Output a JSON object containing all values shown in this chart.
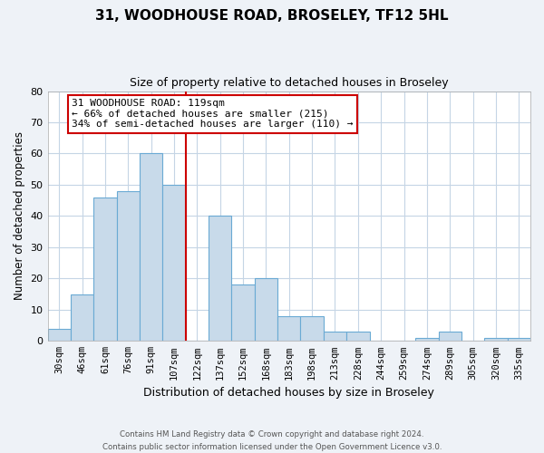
{
  "title": "31, WOODHOUSE ROAD, BROSELEY, TF12 5HL",
  "subtitle": "Size of property relative to detached houses in Broseley",
  "xlabel": "Distribution of detached houses by size in Broseley",
  "ylabel": "Number of detached properties",
  "bar_labels": [
    "30sqm",
    "46sqm",
    "61sqm",
    "76sqm",
    "91sqm",
    "107sqm",
    "122sqm",
    "137sqm",
    "152sqm",
    "168sqm",
    "183sqm",
    "198sqm",
    "213sqm",
    "228sqm",
    "244sqm",
    "259sqm",
    "274sqm",
    "289sqm",
    "305sqm",
    "320sqm",
    "335sqm"
  ],
  "bar_values": [
    4,
    15,
    46,
    48,
    60,
    50,
    0,
    40,
    18,
    20,
    8,
    8,
    3,
    3,
    0,
    0,
    1,
    3,
    0,
    1,
    1
  ],
  "bar_color": "#c8daea",
  "bar_edge_color": "#6aaad4",
  "vline_color": "#cc0000",
  "annotation_text": "31 WOODHOUSE ROAD: 119sqm\n← 66% of detached houses are smaller (215)\n34% of semi-detached houses are larger (110) →",
  "annotation_box_color": "#ffffff",
  "annotation_box_edge": "#cc0000",
  "ylim": [
    0,
    80
  ],
  "yticks": [
    0,
    10,
    20,
    30,
    40,
    50,
    60,
    70,
    80
  ],
  "footer_line1": "Contains HM Land Registry data © Crown copyright and database right 2024.",
  "footer_line2": "Contains public sector information licensed under the Open Government Licence v3.0.",
  "bg_color": "#eef2f7",
  "plot_bg_color": "#ffffff",
  "grid_color": "#c5d5e5"
}
